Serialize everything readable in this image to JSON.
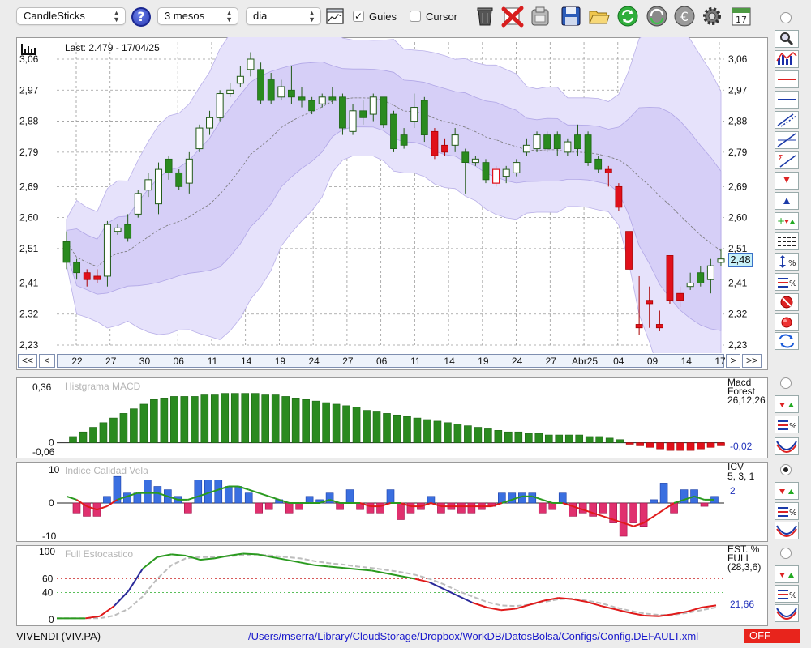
{
  "toolbar": {
    "chart_type": "CandleSticks",
    "period": "3 mesos",
    "interval": "dia",
    "guides_label": "Guies",
    "guides_checked": true,
    "cursor_label": "Cursor",
    "cursor_checked": false,
    "help_label": "?",
    "calendar_day": "17"
  },
  "main_chart": {
    "last_label": "Last: 2.479 - 17/04/25",
    "y_ticks": [
      "3,06",
      "2,97",
      "2,88",
      "2,79",
      "2,69",
      "2,60",
      "2,51",
      "2,41",
      "2,32",
      "2,23"
    ],
    "current_value": "2,48",
    "x_ticks": [
      "22",
      "27",
      "30",
      "06",
      "11",
      "14",
      "19",
      "24",
      "27",
      "06",
      "11",
      "14",
      "19",
      "24",
      "27",
      "Abr25",
      "04",
      "09",
      "14",
      "17"
    ],
    "nav": {
      "first": "<<",
      "prev": "<",
      "next": ">",
      "last": ">>"
    }
  },
  "macd": {
    "title": "Histgrama MACD",
    "label1": "Macd",
    "label2": "Forest",
    "params": "26,12,26",
    "value": "-0,02",
    "y_ticks": [
      "0,36",
      "0",
      "-0,06"
    ]
  },
  "icv": {
    "title": "Indice Calidad Vela",
    "label1": "ICV",
    "params": "5, 3, 1",
    "value": "2",
    "y_ticks": [
      "10",
      "0",
      "-10"
    ]
  },
  "stoch": {
    "title": "Full Estocastico",
    "label1": "EST. %",
    "label2": "FULL",
    "params": "(28,3,6)",
    "value": "21,66",
    "y_ticks": [
      "100",
      "60",
      "40",
      "0"
    ]
  },
  "status": {
    "ticker": "VIVENDI (VIV.PA)",
    "path": "/Users/mserra/Library/CloudStorage/Dropbox/WorkDB/DatosBolsa/Configs/Config.DEFAULT.xml",
    "off_label": "OFF"
  },
  "chart_data": [
    {
      "type": "candlestick",
      "title": "",
      "ylim": [
        2.23,
        3.1
      ],
      "x_tick_labels": [
        "22",
        "27",
        "30",
        "06",
        "11",
        "14",
        "19",
        "24",
        "27",
        "06",
        "11",
        "14",
        "19",
        "24",
        "27",
        "Abr25",
        "04",
        "09",
        "14",
        "17"
      ],
      "bars": [
        {
          "o": 2.47,
          "c": 2.53,
          "h": 2.56,
          "l": 2.45,
          "up": false
        },
        {
          "o": 2.47,
          "c": 2.44,
          "h": 2.48,
          "l": 2.42,
          "up": false
        },
        {
          "o": 2.42,
          "c": 2.44,
          "h": 2.45,
          "l": 2.4,
          "up": false,
          "red": true
        },
        {
          "o": 2.43,
          "c": 2.42,
          "h": 2.45,
          "l": 2.41,
          "up": false,
          "red": true
        },
        {
          "o": 2.43,
          "c": 2.58,
          "h": 2.59,
          "l": 2.4,
          "up": true
        },
        {
          "o": 2.56,
          "c": 2.57,
          "h": 2.58,
          "l": 2.55,
          "up": true
        },
        {
          "o": 2.58,
          "c": 2.54,
          "h": 2.61,
          "l": 2.53,
          "up": false
        },
        {
          "o": 2.61,
          "c": 2.67,
          "h": 2.68,
          "l": 2.6,
          "up": true
        },
        {
          "o": 2.68,
          "c": 2.71,
          "h": 2.73,
          "l": 2.66,
          "up": true
        },
        {
          "o": 2.64,
          "c": 2.74,
          "h": 2.76,
          "l": 2.61,
          "up": true
        },
        {
          "o": 2.77,
          "c": 2.73,
          "h": 2.78,
          "l": 2.71,
          "up": false
        },
        {
          "o": 2.73,
          "c": 2.69,
          "h": 2.74,
          "l": 2.68,
          "up": false
        },
        {
          "o": 2.7,
          "c": 2.77,
          "h": 2.79,
          "l": 2.67,
          "up": true
        },
        {
          "o": 2.8,
          "c": 2.86,
          "h": 2.87,
          "l": 2.79,
          "up": true
        },
        {
          "o": 2.86,
          "c": 2.89,
          "h": 2.91,
          "l": 2.84,
          "up": true
        },
        {
          "o": 2.89,
          "c": 2.96,
          "h": 2.97,
          "l": 2.88,
          "up": true
        },
        {
          "o": 2.96,
          "c": 2.97,
          "h": 2.99,
          "l": 2.95,
          "up": true
        },
        {
          "o": 2.99,
          "c": 3.01,
          "h": 3.04,
          "l": 2.98,
          "up": true
        },
        {
          "o": 3.03,
          "c": 3.06,
          "h": 3.08,
          "l": 3.01,
          "up": true
        },
        {
          "o": 3.03,
          "c": 2.94,
          "h": 3.05,
          "l": 2.93,
          "up": false
        },
        {
          "o": 3.0,
          "c": 2.94,
          "h": 3.02,
          "l": 2.93,
          "up": false
        },
        {
          "o": 2.95,
          "c": 2.98,
          "h": 3.0,
          "l": 2.94,
          "up": true
        },
        {
          "o": 2.97,
          "c": 2.95,
          "h": 3.04,
          "l": 2.93,
          "up": false
        },
        {
          "o": 2.95,
          "c": 2.94,
          "h": 2.98,
          "l": 2.92,
          "up": false
        },
        {
          "o": 2.94,
          "c": 2.91,
          "h": 2.95,
          "l": 2.9,
          "up": false
        },
        {
          "o": 2.93,
          "c": 2.95,
          "h": 2.96,
          "l": 2.92,
          "up": true
        },
        {
          "o": 2.95,
          "c": 2.94,
          "h": 2.98,
          "l": 2.93,
          "up": false
        },
        {
          "o": 2.95,
          "c": 2.86,
          "h": 2.96,
          "l": 2.84,
          "up": false
        },
        {
          "o": 2.85,
          "c": 2.91,
          "h": 2.93,
          "l": 2.84,
          "up": true
        },
        {
          "o": 2.91,
          "c": 2.89,
          "h": 2.94,
          "l": 2.87,
          "up": false
        },
        {
          "o": 2.9,
          "c": 2.95,
          "h": 2.96,
          "l": 2.88,
          "up": true
        },
        {
          "o": 2.95,
          "c": 2.87,
          "h": 2.95,
          "l": 2.86,
          "up": false
        },
        {
          "o": 2.9,
          "c": 2.8,
          "h": 2.91,
          "l": 2.79,
          "up": false
        },
        {
          "o": 2.84,
          "c": 2.81,
          "h": 2.86,
          "l": 2.8,
          "up": false
        },
        {
          "o": 2.88,
          "c": 2.92,
          "h": 2.96,
          "l": 2.86,
          "up": true
        },
        {
          "o": 2.94,
          "c": 2.84,
          "h": 2.95,
          "l": 2.82,
          "up": false
        },
        {
          "o": 2.85,
          "c": 2.78,
          "h": 2.86,
          "l": 2.77,
          "up": false,
          "red": true
        },
        {
          "o": 2.79,
          "c": 2.81,
          "h": 2.83,
          "l": 2.78,
          "up": false,
          "red": true
        },
        {
          "o": 2.81,
          "c": 2.84,
          "h": 2.86,
          "l": 2.79,
          "up": true
        },
        {
          "o": 2.79,
          "c": 2.76,
          "h": 2.8,
          "l": 2.67,
          "up": false
        },
        {
          "o": 2.77,
          "c": 2.76,
          "h": 2.78,
          "l": 2.75,
          "up": true
        },
        {
          "o": 2.76,
          "c": 2.71,
          "h": 2.77,
          "l": 2.7,
          "up": false
        },
        {
          "o": 2.7,
          "c": 2.74,
          "h": 2.75,
          "l": 2.69,
          "up": true,
          "red": true
        },
        {
          "o": 2.72,
          "c": 2.74,
          "h": 2.75,
          "l": 2.7,
          "up": true
        },
        {
          "o": 2.73,
          "c": 2.76,
          "h": 2.77,
          "l": 2.72,
          "up": true
        },
        {
          "o": 2.79,
          "c": 2.81,
          "h": 2.83,
          "l": 2.78,
          "up": true
        },
        {
          "o": 2.8,
          "c": 2.84,
          "h": 2.85,
          "l": 2.79,
          "up": true
        },
        {
          "o": 2.8,
          "c": 2.84,
          "h": 2.85,
          "l": 2.79,
          "up": false
        },
        {
          "o": 2.84,
          "c": 2.8,
          "h": 2.85,
          "l": 2.78,
          "up": false
        },
        {
          "o": 2.79,
          "c": 2.82,
          "h": 2.83,
          "l": 2.78,
          "up": true
        },
        {
          "o": 2.8,
          "c": 2.84,
          "h": 2.87,
          "l": 2.78,
          "up": false
        },
        {
          "o": 2.84,
          "c": 2.76,
          "h": 2.85,
          "l": 2.75,
          "up": false
        },
        {
          "o": 2.77,
          "c": 2.74,
          "h": 2.78,
          "l": 2.73,
          "up": false
        },
        {
          "o": 2.74,
          "c": 2.73,
          "h": 2.75,
          "l": 2.69,
          "up": false,
          "red": true
        },
        {
          "o": 2.69,
          "c": 2.63,
          "h": 2.7,
          "l": 2.62,
          "up": false,
          "red": true
        },
        {
          "o": 2.56,
          "c": 2.45,
          "h": 2.58,
          "l": 2.41,
          "up": false,
          "red": true
        },
        {
          "o": 2.29,
          "c": 2.28,
          "h": 2.43,
          "l": 2.26,
          "up": false,
          "red": true
        },
        {
          "o": 2.35,
          "c": 2.36,
          "h": 2.4,
          "l": 2.28,
          "up": false,
          "red": true
        },
        {
          "o": 2.29,
          "c": 2.28,
          "h": 2.33,
          "l": 2.27,
          "up": false,
          "red": true
        },
        {
          "o": 2.49,
          "c": 2.36,
          "h": 2.49,
          "l": 2.35,
          "up": false,
          "red": true
        },
        {
          "o": 2.38,
          "c": 2.36,
          "h": 2.4,
          "l": 2.34,
          "up": false,
          "red": true
        },
        {
          "o": 2.4,
          "c": 2.41,
          "h": 2.44,
          "l": 2.39,
          "up": true
        },
        {
          "o": 2.44,
          "c": 2.41,
          "h": 2.46,
          "l": 2.4,
          "up": false
        },
        {
          "o": 2.42,
          "c": 2.46,
          "h": 2.48,
          "l": 2.38,
          "up": true
        },
        {
          "o": 2.47,
          "c": 2.48,
          "h": 2.51,
          "l": 2.46,
          "up": true
        }
      ]
    },
    {
      "type": "bar",
      "title": "Histgrama MACD",
      "ylim": [
        -0.06,
        0.36
      ],
      "values": [
        0.04,
        0.07,
        0.1,
        0.13,
        0.16,
        0.19,
        0.22,
        0.25,
        0.28,
        0.29,
        0.3,
        0.3,
        0.3,
        0.31,
        0.31,
        0.32,
        0.32,
        0.32,
        0.32,
        0.31,
        0.31,
        0.3,
        0.29,
        0.28,
        0.27,
        0.26,
        0.25,
        0.24,
        0.23,
        0.21,
        0.2,
        0.19,
        0.18,
        0.17,
        0.16,
        0.15,
        0.14,
        0.13,
        0.12,
        0.11,
        0.1,
        0.09,
        0.08,
        0.07,
        0.07,
        0.06,
        0.06,
        0.05,
        0.05,
        0.05,
        0.05,
        0.04,
        0.04,
        0.03,
        0.02,
        -0.01,
        -0.02,
        -0.03,
        -0.04,
        -0.05,
        -0.05,
        -0.05,
        -0.04,
        -0.03,
        -0.02
      ]
    },
    {
      "type": "bar",
      "title": "Indice Calidad Vela",
      "ylim": [
        -10,
        10
      ],
      "values": [
        0,
        -3,
        -4,
        -4,
        2,
        8,
        3,
        3,
        7,
        5,
        4,
        2,
        -3,
        7,
        7,
        7,
        5,
        5,
        3,
        -3,
        -2,
        1,
        -3,
        -2,
        2,
        1,
        3,
        -2,
        4,
        -2,
        -3,
        -3,
        4,
        -5,
        -3,
        -2,
        2,
        -3,
        -2,
        -3,
        -3,
        -2,
        -1,
        3,
        3,
        3,
        3,
        -3,
        -2,
        3,
        -4,
        -3,
        -4,
        -3,
        -6,
        -10,
        -6,
        -7,
        1,
        6,
        -3,
        4,
        4,
        -1,
        2
      ],
      "line_signal": [
        2,
        1,
        -1,
        -2,
        -1,
        1,
        2,
        3,
        3,
        3,
        2,
        1,
        1,
        2,
        3,
        4,
        5,
        5,
        4,
        3,
        2,
        1,
        0,
        0,
        0,
        0,
        1,
        0,
        0,
        0,
        -1,
        -1,
        0,
        0,
        -1,
        -1,
        0,
        -1,
        -1,
        -1,
        -1,
        -1,
        -1,
        0,
        1,
        2,
        2,
        1,
        0,
        0,
        -1,
        -2,
        -3,
        -4,
        -5,
        -6,
        -7,
        -6,
        -4,
        -2,
        0,
        1,
        2,
        1,
        1
      ]
    },
    {
      "type": "line",
      "title": "Full Estocastico",
      "ylim": [
        0,
        100
      ],
      "series": [
        {
          "values": [
            2,
            2,
            2,
            5,
            20,
            42,
            75,
            92,
            96,
            94,
            88,
            90,
            94,
            97,
            96,
            92,
            88,
            84,
            80,
            78,
            76,
            74,
            72,
            68,
            64,
            60,
            55,
            45,
            35,
            25,
            18,
            14,
            16,
            22,
            28,
            32,
            30,
            26,
            20,
            15,
            10,
            6,
            5,
            8,
            12,
            18,
            21
          ]
        },
        {
          "values": [
            2,
            2,
            2,
            2,
            6,
            16,
            34,
            60,
            80,
            90,
            92,
            92,
            93,
            95,
            96,
            94,
            92,
            90,
            86,
            83,
            81,
            78,
            76,
            73,
            70,
            66,
            60,
            52,
            42,
            34,
            26,
            21,
            20,
            22,
            26,
            30,
            31,
            28,
            24,
            18,
            13,
            9,
            7,
            7,
            10,
            14,
            18
          ]
        }
      ]
    }
  ]
}
